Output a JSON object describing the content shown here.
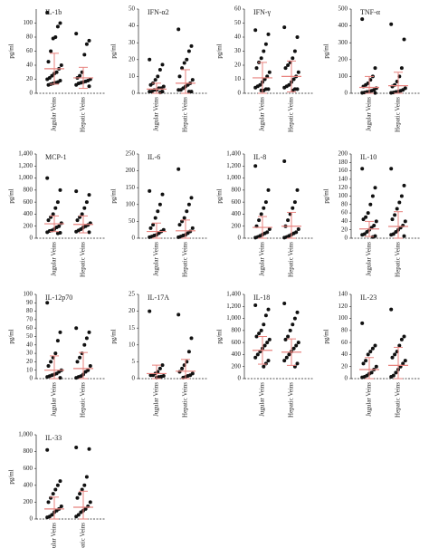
{
  "chart_data": [
    {
      "type": "strip",
      "title": "IL-1b",
      "y_label": "pg/ml",
      "categories": [
        "Jugular Veins",
        "Hepatic Veins"
      ],
      "color": "#111111",
      "error_color": "#e8837f",
      "ylim": [
        0,
        120
      ],
      "yticks": [
        0,
        20,
        40,
        60,
        80,
        100
      ],
      "groups": [
        {
          "values": [
            115,
            100,
            95,
            80,
            78,
            60,
            45,
            40,
            35,
            30,
            28,
            25,
            22,
            20,
            18,
            16,
            15,
            14,
            13,
            12
          ],
          "mean": 35,
          "sd": 22
        },
        {
          "values": [
            85,
            75,
            70,
            55,
            30,
            25,
            22,
            20,
            18,
            17,
            16,
            15,
            14,
            12,
            10
          ],
          "mean": 22,
          "sd": 15
        }
      ]
    },
    {
      "type": "strip",
      "title": "IFN-α2",
      "y_label": "pg/ml",
      "categories": [
        "Jugular Veins",
        "Hepatic Veins"
      ],
      "color": "#111111",
      "error_color": "#e8837f",
      "ylim": [
        0,
        50
      ],
      "yticks": [
        0,
        10,
        20,
        30,
        40,
        50
      ],
      "groups": [
        {
          "values": [
            20,
            17,
            14,
            10,
            8,
            6,
            5,
            4,
            3,
            3,
            2,
            2,
            1,
            1,
            1,
            0.5
          ],
          "mean": 2.5,
          "sd": 3.5
        },
        {
          "values": [
            38,
            28,
            25,
            20,
            18,
            15,
            10,
            8,
            6,
            5,
            4,
            3,
            2,
            2,
            1,
            1
          ],
          "mean": 6,
          "sd": 8
        }
      ]
    },
    {
      "type": "strip",
      "title": "IFN-γ",
      "y_label": "pg/ml",
      "categories": [
        "Jugular Veins",
        "Hepatic Veins"
      ],
      "color": "#111111",
      "error_color": "#e8837f",
      "ylim": [
        0,
        60
      ],
      "yticks": [
        0,
        10,
        20,
        30,
        40,
        50,
        60
      ],
      "groups": [
        {
          "values": [
            45,
            42,
            35,
            30,
            25,
            22,
            18,
            15,
            12,
            10,
            8,
            6,
            5,
            4,
            3,
            3,
            2,
            2
          ],
          "mean": 11,
          "sd": 11
        },
        {
          "values": [
            47,
            40,
            30,
            25,
            22,
            20,
            18,
            15,
            12,
            10,
            8,
            6,
            5,
            4,
            3,
            3,
            2
          ],
          "mean": 12,
          "sd": 11
        }
      ]
    },
    {
      "type": "strip",
      "title": "TNF-α",
      "y_label": "pg/ml",
      "categories": [
        "Jugular Veins",
        "Hepatic Veins"
      ],
      "color": "#111111",
      "error_color": "#e8837f",
      "ylim": [
        0,
        500
      ],
      "yticks": [
        0,
        100,
        200,
        300,
        400,
        500
      ],
      "groups": [
        {
          "values": [
            440,
            150,
            100,
            80,
            60,
            50,
            40,
            30,
            20,
            15,
            10,
            8,
            5,
            3,
            2
          ],
          "mean": 35,
          "sd": 65
        },
        {
          "values": [
            410,
            320,
            150,
            100,
            70,
            50,
            40,
            30,
            20,
            15,
            10,
            8,
            5,
            3
          ],
          "mean": 45,
          "sd": 80
        }
      ]
    },
    {
      "type": "strip",
      "title": "MCP-1",
      "y_label": "pg/ml",
      "categories": [
        "Jugular Veins",
        "Hepatic Veins"
      ],
      "color": "#111111",
      "error_color": "#e8837f",
      "ylim": [
        0,
        1400
      ],
      "yticks": [
        0,
        200,
        400,
        600,
        800,
        {
          "value": 1000,
          "label": "1,000"
        },
        {
          "value": 1200,
          "label": "1,200"
        },
        {
          "value": 1400,
          "label": "1,400"
        }
      ],
      "groups": [
        {
          "values": [
            1000,
            800,
            600,
            500,
            400,
            350,
            300,
            250,
            200,
            180,
            150,
            130,
            120,
            100,
            90,
            80
          ],
          "mean": 240,
          "sd": 130
        },
        {
          "values": [
            780,
            720,
            600,
            500,
            400,
            350,
            300,
            250,
            220,
            200,
            180,
            150,
            130,
            110,
            100
          ],
          "mean": 230,
          "sd": 140
        }
      ]
    },
    {
      "type": "strip",
      "title": "IL-6",
      "y_label": "pg/ml",
      "categories": [
        "Jugular Veins",
        "Hepatic Veins"
      ],
      "color": "#111111",
      "error_color": "#e8837f",
      "ylim": [
        0,
        250
      ],
      "yticks": [
        0,
        50,
        100,
        150,
        200,
        250
      ],
      "groups": [
        {
          "values": [
            140,
            130,
            100,
            80,
            60,
            40,
            30,
            25,
            20,
            15,
            10,
            8,
            5,
            3
          ],
          "mean": 20,
          "sd": 25
        },
        {
          "values": [
            205,
            120,
            100,
            80,
            60,
            50,
            40,
            30,
            20,
            15,
            10,
            8,
            5,
            3
          ],
          "mean": 22,
          "sd": 32
        }
      ]
    },
    {
      "type": "strip",
      "title": "IL-8",
      "y_label": "pg/ml",
      "categories": [
        "Jugular Veins",
        "Hepatic Veins"
      ],
      "color": "#111111",
      "error_color": "#e8837f",
      "ylim": [
        0,
        1400
      ],
      "yticks": [
        0,
        200,
        400,
        600,
        800,
        {
          "value": 1000,
          "label": "1,000"
        },
        {
          "value": 1200,
          "label": "1,200"
        },
        {
          "value": 1400,
          "label": "1,400"
        }
      ],
      "groups": [
        {
          "values": [
            1200,
            800,
            600,
            500,
            400,
            300,
            200,
            150,
            100,
            80,
            60,
            40,
            20,
            10
          ],
          "mean": 180,
          "sd": 180
        },
        {
          "values": [
            1280,
            800,
            600,
            500,
            400,
            300,
            200,
            150,
            100,
            80,
            60,
            40,
            20,
            10
          ],
          "mean": 200,
          "sd": 230
        }
      ]
    },
    {
      "type": "strip",
      "title": "IL-10",
      "y_label": "pg/ml",
      "categories": [
        "Jugular Veins",
        "Hepatic Veins"
      ],
      "color": "#111111",
      "error_color": "#e8837f",
      "ylim": [
        0,
        200
      ],
      "yticks": [
        0,
        20,
        40,
        60,
        80,
        100,
        120,
        140,
        160,
        180,
        200
      ],
      "groups": [
        {
          "values": [
            165,
            120,
            100,
            80,
            60,
            50,
            45,
            40,
            30,
            25,
            20,
            15,
            10,
            8,
            5,
            3
          ],
          "mean": 22,
          "sd": 18
        },
        {
          "values": [
            165,
            125,
            100,
            85,
            70,
            55,
            45,
            40,
            30,
            25,
            20,
            15,
            10,
            8,
            5
          ],
          "mean": 28,
          "sd": 35
        }
      ]
    },
    {
      "type": "strip",
      "title": "IL-12p70",
      "y_label": "pg/ml",
      "categories": [
        "Jugular Veins",
        "Hepatic Veins"
      ],
      "color": "#111111",
      "error_color": "#e8837f",
      "ylim": [
        0,
        100
      ],
      "yticks": [
        0,
        10,
        20,
        30,
        40,
        50,
        60,
        70,
        80,
        90,
        100
      ],
      "groups": [
        {
          "values": [
            90,
            55,
            45,
            30,
            25,
            20,
            15,
            10,
            8,
            6,
            5,
            4,
            3,
            2,
            1
          ],
          "mean": 10,
          "sd": 17
        },
        {
          "values": [
            60,
            55,
            48,
            40,
            30,
            25,
            20,
            15,
            10,
            8,
            5,
            3,
            2,
            1
          ],
          "mean": 12,
          "sd": 19
        }
      ]
    },
    {
      "type": "strip",
      "title": "IL-17A",
      "y_label": "pg/ml",
      "categories": [
        "Jugular Veins",
        "Hepatic Veins"
      ],
      "color": "#111111",
      "error_color": "#e8837f",
      "ylim": [
        0,
        25
      ],
      "yticks": [
        0,
        5,
        10,
        15,
        20,
        25
      ],
      "groups": [
        {
          "values": [
            20,
            4,
            3,
            2,
            1.5,
            1,
            1,
            0.8,
            0.6,
            0.5,
            0.3
          ],
          "mean": 1.5,
          "sd": 2.5
        },
        {
          "values": [
            19,
            12,
            8,
            5,
            4,
            3,
            2,
            1.5,
            1,
            0.8,
            0.5,
            0.3
          ],
          "mean": 2.2,
          "sd": 3.5
        }
      ]
    },
    {
      "type": "strip",
      "title": "IL-18",
      "y_label": "pg/ml",
      "categories": [
        "Jugular Veins",
        "Hepatic Veins"
      ],
      "color": "#111111",
      "error_color": "#e8837f",
      "ylim": [
        0,
        1400
      ],
      "yticks": [
        0,
        200,
        400,
        600,
        800,
        {
          "value": 1000,
          "label": "1,000"
        },
        {
          "value": 1200,
          "label": "1,200"
        },
        {
          "value": 1400,
          "label": "1,400"
        }
      ],
      "groups": [
        {
          "values": [
            1220,
            1150,
            1050,
            900,
            800,
            750,
            700,
            650,
            600,
            550,
            500,
            450,
            400,
            350,
            300,
            250,
            200
          ],
          "mean": 470,
          "sd": 230
        },
        {
          "values": [
            1250,
            1100,
            1000,
            900,
            800,
            700,
            650,
            600,
            550,
            500,
            450,
            400,
            350,
            300,
            250,
            200
          ],
          "mean": 440,
          "sd": 220
        }
      ]
    },
    {
      "type": "strip",
      "title": "IL-23",
      "y_label": "pg/ml",
      "categories": [
        "Jugular Veins",
        "Hepatic Veins"
      ],
      "color": "#111111",
      "error_color": "#e8837f",
      "ylim": [
        0,
        140
      ],
      "yticks": [
        0,
        20,
        40,
        60,
        80,
        100,
        120,
        140
      ],
      "groups": [
        {
          "values": [
            92,
            55,
            50,
            45,
            40,
            30,
            25,
            20,
            15,
            10,
            8,
            5,
            3,
            2
          ],
          "mean": 15,
          "sd": 20
        },
        {
          "values": [
            115,
            70,
            65,
            55,
            45,
            40,
            35,
            30,
            25,
            20,
            15,
            10,
            5,
            3
          ],
          "mean": 22,
          "sd": 30
        }
      ]
    },
    {
      "type": "strip",
      "title": "IL-33",
      "y_label": "pg/ml",
      "categories": [
        "Jugular Veins",
        "Hepatic Veins"
      ],
      "color": "#111111",
      "error_color": "#e8837f",
      "ylim": [
        0,
        1000
      ],
      "yticks": [
        0,
        200,
        400,
        600,
        800,
        {
          "value": 1000,
          "label": "1,000"
        }
      ],
      "groups": [
        {
          "values": [
            820,
            450,
            400,
            350,
            300,
            250,
            200,
            150,
            120,
            100,
            80,
            50,
            30,
            20
          ],
          "mean": 120,
          "sd": 140
        },
        {
          "values": [
            850,
            830,
            500,
            400,
            350,
            300,
            250,
            200,
            150,
            120,
            100,
            80,
            50,
            30
          ],
          "mean": 140,
          "sd": 190
        }
      ]
    }
  ]
}
